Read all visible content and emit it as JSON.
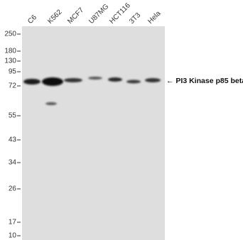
{
  "lanes": [
    "C6",
    "K562",
    "MCF7",
    "U87MG",
    "HCT116",
    "3T3",
    "Hela"
  ],
  "markers": [
    "250",
    "180",
    "130",
    "95",
    "72",
    "55",
    "43",
    "34",
    "26",
    "17",
    "10"
  ],
  "annotation": "← PI3 Kinase p85 beta"
}
